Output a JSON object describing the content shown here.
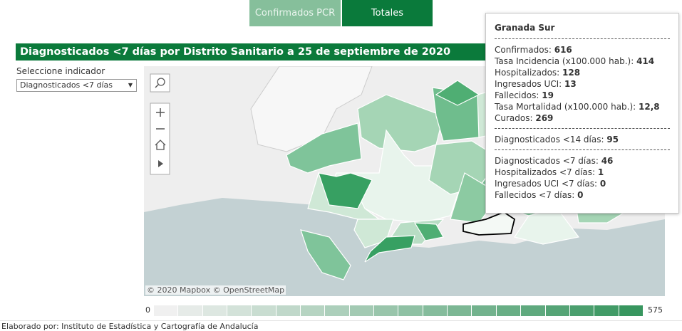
{
  "tabs": [
    "Confirmados PCR",
    "Totales"
  ],
  "title": "Diagnosticados <7 días por Distrito Sanitario a 25 de septiembre de 2020",
  "selector": {
    "label": "Seleccione indicador",
    "value": "Diagnosticados <7 días"
  },
  "map": {
    "attribution": "© 2020 Mapbox © OpenStreetMap"
  },
  "legend": {
    "min": 0,
    "max": 575
  },
  "tooltip": {
    "title": "Granada Sur",
    "groups": [
      [
        {
          "label": "Confirmados:",
          "value": 616
        },
        {
          "label": "Tasa Incidencia (x100.000 hab.):",
          "value": 414
        },
        {
          "label": "Hospitalizados:",
          "value": 128
        },
        {
          "label": "Ingresados UCI:",
          "value": 13
        },
        {
          "label": "Fallecidos:",
          "value": 19
        },
        {
          "label": "Tasa Mortalidad (x100.000 hab.):",
          "value": "12,8"
        },
        {
          "label": "Curados:",
          "value": 269
        }
      ],
      [
        {
          "label": "Diagnosticados <14 días:",
          "value": 95
        }
      ],
      [
        {
          "label": "Diagnosticados <7 días:",
          "value": 46
        },
        {
          "label": "Hospitalizados <7 días:",
          "value": 1
        },
        {
          "label": "Ingresados UCI <7 días:",
          "value": 0
        },
        {
          "label": "Fallecidos <7 días:",
          "value": 0
        }
      ]
    ]
  },
  "footer": "Elaborado por: Instituto de Estadística y Cartografía de Andalucía"
}
